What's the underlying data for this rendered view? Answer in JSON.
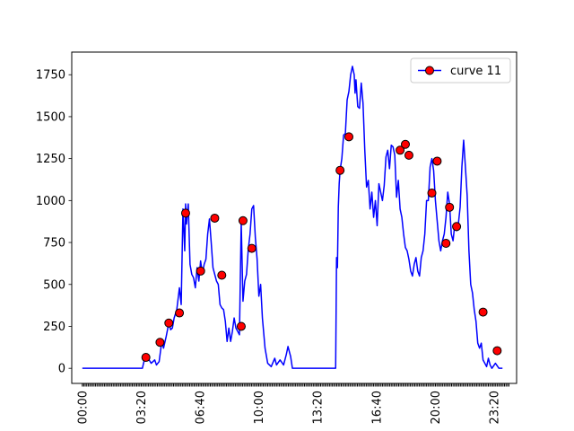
{
  "chart_data": {
    "type": "line",
    "title": "",
    "xlabel": "",
    "ylabel": "",
    "x_unit": "hours",
    "xlim": [
      -0.6,
      24.6
    ],
    "ylim": [
      -90,
      1885
    ],
    "grid": false,
    "legend_position": "top-right",
    "y_ticks": [
      0,
      250,
      500,
      750,
      1000,
      1250,
      1500,
      1750
    ],
    "y_tick_labels": [
      "0",
      "250",
      "500",
      "750",
      "1000",
      "1250",
      "1500",
      "1750"
    ],
    "x_ticks": [
      0,
      3.3333,
      6.6667,
      10,
      13.3333,
      16.6667,
      20,
      23.3333
    ],
    "x_tick_labels": [
      "00:00",
      "03:20",
      "06:40",
      "10:00",
      "13:20",
      "16:40",
      "20:00",
      "23:20"
    ],
    "series": [
      {
        "name": "curve 11",
        "color": "#0000ff",
        "marker_color": "#ff0000",
        "marker_edge_color": "#000000",
        "line_x": [
          0,
          3.4,
          3.5,
          3.7,
          3.9,
          4.1,
          4.2,
          4.35,
          4.5,
          4.6,
          4.75,
          4.9,
          5.0,
          5.1,
          5.2,
          5.35,
          5.5,
          5.6,
          5.7,
          5.8,
          5.85,
          5.9,
          6.0,
          6.1,
          6.2,
          6.3,
          6.4,
          6.5,
          6.6,
          6.7,
          6.8,
          6.9,
          7.0,
          7.1,
          7.2,
          7.3,
          7.4,
          7.5,
          7.6,
          7.7,
          7.8,
          7.9,
          8.0,
          8.1,
          8.2,
          8.3,
          8.4,
          8.5,
          8.6,
          8.7,
          8.8,
          8.9,
          9.0,
          9.1,
          9.2,
          9.3,
          9.4,
          9.5,
          9.6,
          9.7,
          9.8,
          9.9,
          10.0,
          10.1,
          10.2,
          10.35,
          10.5,
          10.7,
          10.9,
          11.0,
          11.2,
          11.4,
          11.55,
          11.65,
          11.8,
          11.9,
          12.0,
          14.35,
          14.4,
          14.45,
          14.5,
          14.55,
          14.6,
          14.7,
          14.8,
          14.9,
          15.0,
          15.1,
          15.2,
          15.3,
          15.4,
          15.45,
          15.5,
          15.6,
          15.7,
          15.8,
          15.9,
          16.0,
          16.1,
          16.2,
          16.3,
          16.4,
          16.5,
          16.6,
          16.7,
          16.8,
          16.9,
          17.0,
          17.1,
          17.2,
          17.3,
          17.4,
          17.5,
          17.6,
          17.7,
          17.8,
          17.9,
          18.0,
          18.1,
          18.2,
          18.3,
          18.4,
          18.5,
          18.6,
          18.7,
          18.8,
          18.9,
          19.0,
          19.1,
          19.2,
          19.3,
          19.4,
          19.5,
          19.6,
          19.7,
          19.8,
          19.9,
          20.0,
          20.1,
          20.2,
          20.3,
          20.4,
          20.5,
          20.6,
          20.7,
          20.8,
          20.9,
          21.0,
          21.1,
          21.2,
          21.3,
          21.4,
          21.5,
          21.6,
          21.7,
          21.8,
          21.9,
          22.0,
          22.1,
          22.2,
          22.3,
          22.4,
          22.5,
          22.6,
          22.7,
          22.8,
          22.9,
          23.0,
          23.1,
          23.2,
          23.4,
          23.6,
          23.8,
          23.95,
          24.1,
          24.2
        ],
        "line_y": [
          0,
          0,
          45,
          65,
          30,
          50,
          20,
          40,
          160,
          120,
          190,
          270,
          230,
          240,
          300,
          350,
          480,
          380,
          950,
          700,
          980,
          860,
          980,
          620,
          560,
          540,
          480,
          600,
          520,
          640,
          560,
          620,
          650,
          800,
          890,
          750,
          600,
          560,
          520,
          500,
          380,
          360,
          350,
          280,
          160,
          240,
          160,
          220,
          300,
          240,
          220,
          200,
          870,
          400,
          520,
          560,
          710,
          800,
          950,
          970,
          780,
          650,
          430,
          500,
          300,
          120,
          30,
          10,
          60,
          20,
          50,
          20,
          80,
          130,
          70,
          0,
          0,
          0,
          660,
          600,
          960,
          1100,
          1180,
          1250,
          1390,
          1400,
          1600,
          1650,
          1750,
          1800,
          1750,
          1640,
          1720,
          1560,
          1550,
          1700,
          1580,
          1300,
          1080,
          1120,
          950,
          1050,
          900,
          1000,
          850,
          1100,
          1050,
          1000,
          1090,
          1260,
          1300,
          1190,
          1330,
          1320,
          1270,
          1020,
          1120,
          950,
          900,
          800,
          720,
          700,
          650,
          580,
          550,
          620,
          660,
          580,
          550,
          660,
          700,
          800,
          1000,
          1000,
          1200,
          1250,
          1180,
          1000,
          880,
          760,
          700,
          760,
          800,
          900,
          1050,
          980,
          800,
          760,
          860,
          820,
          860,
          960,
          1200,
          1360,
          1200,
          1030,
          700,
          500,
          450,
          350,
          280,
          150,
          120,
          150,
          50,
          30,
          10,
          60,
          20,
          0,
          30,
          0,
          0
        ],
        "markers_x": [
          3.6,
          4.4,
          4.9,
          5.5,
          5.85,
          6.7,
          7.5,
          7.9,
          9.0,
          9.1,
          9.6,
          14.6,
          15.1,
          18.0,
          18.3,
          18.5,
          19.8,
          20.1,
          20.6,
          20.8,
          21.2,
          22.7,
          23.5
        ],
        "markers_y": [
          65,
          155,
          270,
          330,
          925,
          580,
          895,
          555,
          250,
          880,
          715,
          1180,
          1380,
          1300,
          1335,
          1270,
          1045,
          1235,
          745,
          960,
          845,
          335,
          105
        ]
      }
    ]
  }
}
